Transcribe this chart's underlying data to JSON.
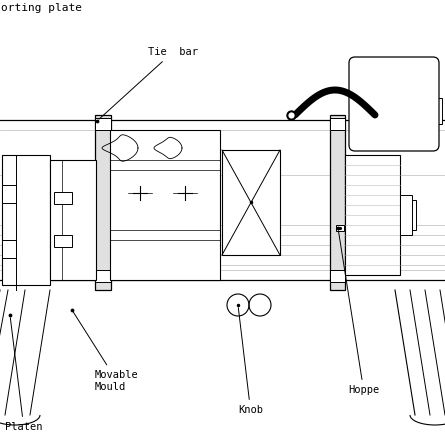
{
  "bg_color": "#ffffff",
  "line_color": "#000000",
  "gray_color": "#bbbbbb",
  "fig_width": 4.45,
  "fig_height": 4.45,
  "dpi": 100,
  "labels": {
    "tie_bar": "Tie  bar",
    "movable_mould": "Movable\nMould",
    "platen": "Platen",
    "hoppe": "Hoppe",
    "knob": "Knob"
  },
  "title": "orting plate"
}
